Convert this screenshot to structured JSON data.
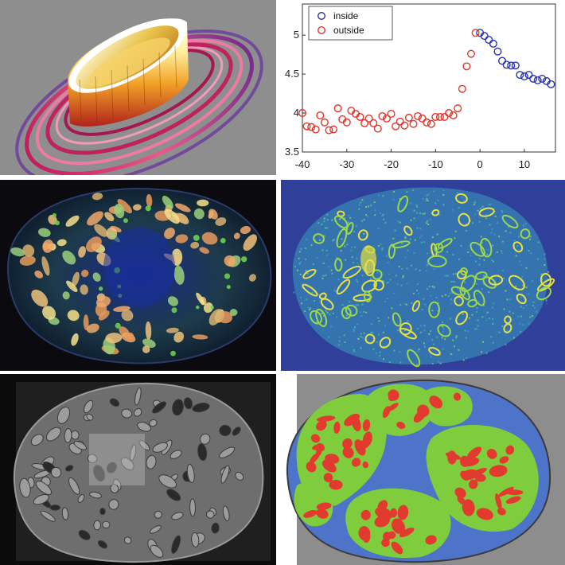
{
  "colors": {
    "inside": "#2b33b0",
    "outside": "#e0362b",
    "heat_bg": "#2f3f9a",
    "seg_blue": "#4e74c9",
    "seg_green": "#7fcd3d",
    "seg_red": "#e23a2f"
  },
  "chart_data": {
    "type": "scatter",
    "title": "",
    "xlabel": "",
    "ylabel": "",
    "xlim": [
      -40,
      17
    ],
    "ylim": [
      3.5,
      5.4
    ],
    "xticks": [
      "-40",
      "-30",
      "-20",
      "-10",
      "0",
      "10"
    ],
    "yticks": [
      "3.5",
      "4",
      "4.5",
      "5"
    ],
    "grid": false,
    "legend_position": "top-left",
    "series": [
      {
        "name": "inside",
        "color": "#2b33b0",
        "x": [
          0,
          1,
          2,
          3,
          4,
          5,
          6,
          7,
          8,
          9,
          10,
          11,
          12,
          13,
          14,
          15,
          16
        ],
        "y": [
          5.03,
          4.99,
          4.94,
          4.89,
          4.79,
          4.67,
          4.62,
          4.61,
          4.61,
          4.49,
          4.47,
          4.49,
          4.44,
          4.42,
          4.44,
          4.41,
          4.37
        ]
      },
      {
        "name": "outside",
        "color": "#e0362b",
        "x": [
          -40,
          -39,
          -38,
          -37,
          -36,
          -35,
          -34,
          -33,
          -32,
          -31,
          -30,
          -29,
          -28,
          -27,
          -26,
          -25,
          -24,
          -23,
          -22,
          -21,
          -20,
          -19,
          -18,
          -17,
          -16,
          -15,
          -14,
          -13,
          -12,
          -11,
          -10,
          -9,
          -8,
          -7,
          -6,
          -5,
          -4,
          -3,
          -2,
          -1
        ],
        "y": [
          4.0,
          3.83,
          3.82,
          3.79,
          3.97,
          3.88,
          3.78,
          3.79,
          4.06,
          3.92,
          3.88,
          4.03,
          3.99,
          3.95,
          3.87,
          3.93,
          3.87,
          3.8,
          3.96,
          3.93,
          3.99,
          3.83,
          3.89,
          3.84,
          3.94,
          3.86,
          3.96,
          3.93,
          3.88,
          3.86,
          3.95,
          3.95,
          3.95,
          4.0,
          3.97,
          4.06,
          4.31,
          4.6,
          4.76,
          5.03
        ]
      }
    ]
  }
}
